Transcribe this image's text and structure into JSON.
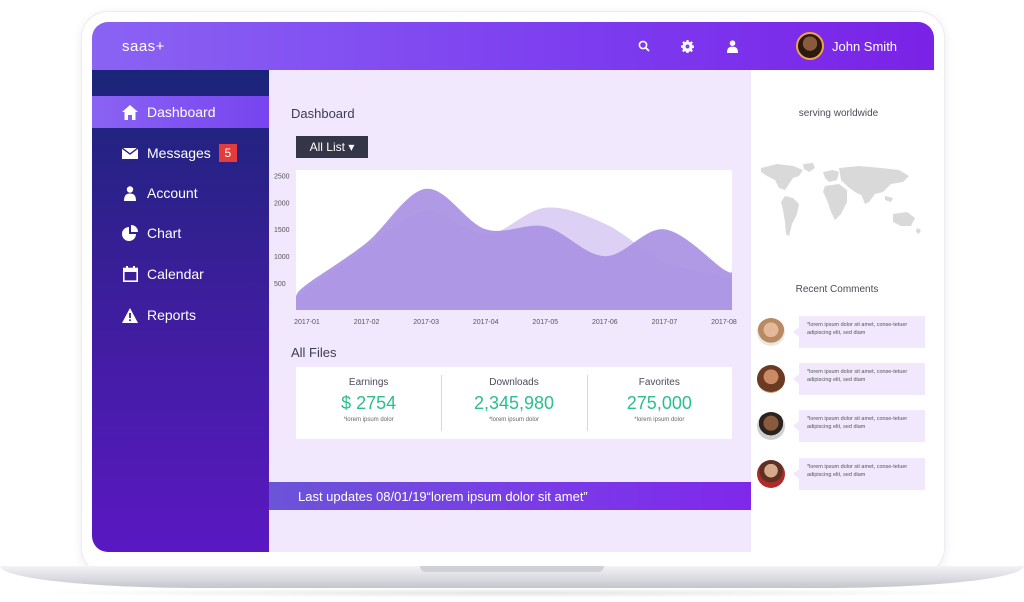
{
  "app": {
    "brand": "saas+"
  },
  "topbar": {
    "icons": [
      "search-icon",
      "gear-icon",
      "user-icon"
    ],
    "user_name": "John Smith"
  },
  "sidebar": {
    "items": [
      {
        "label": "Dashboard",
        "icon": "home-icon",
        "active": true
      },
      {
        "label": "Messages",
        "icon": "envelope-icon",
        "badge": "5"
      },
      {
        "label": "Account",
        "icon": "person-icon"
      },
      {
        "label": "Chart",
        "icon": "pie-chart-icon"
      },
      {
        "label": "Calendar",
        "icon": "calendar-icon"
      },
      {
        "label": "Reports",
        "icon": "warning-icon"
      }
    ]
  },
  "main": {
    "title": "Dashboard",
    "dropdown_label": "All List ▾",
    "files_title": "All Files",
    "stats": [
      {
        "label": "Earnings",
        "value": "$ 2754",
        "note": "*lorem ipsum dolor"
      },
      {
        "label": "Downloads",
        "value": "2,345,980",
        "note": "*lorem ipsum dolor"
      },
      {
        "label": "Favorites",
        "value": "275,000",
        "note": "*lorem ipsum dolor"
      }
    ],
    "updates": "Last updates 08/01/19“lorem ipsum dolor sit amet”"
  },
  "right": {
    "title": "serving worldwide",
    "comments_title": "Recent Comments",
    "comments": [
      {
        "text": "*lorem ipsum dolor sit amet, conse-tetuer adipiscing elit, sed diam"
      },
      {
        "text": "*lorem ipsum dolor sit amet, conse-tetuer adipiscing elit, sed diam"
      },
      {
        "text": "*lorem ipsum dolor sit amet, conse-tetuer adipiscing elit, sed diam"
      },
      {
        "text": "*lorem ipsum dolor sit amet, conse-tetuer adipiscing elit, sed diam"
      }
    ]
  },
  "colors": {
    "accent": "#7d3ff0",
    "sidebar_top": "#1a2579",
    "sidebar_bottom": "#5a18c2",
    "stat_value": "#2bbf8a",
    "badge": "#e43b3b"
  },
  "chart_data": {
    "type": "area",
    "x": [
      "2017-01",
      "2017-02",
      "2017-03",
      "2017-04",
      "2017-05",
      "2017-06",
      "2017-07",
      "2017-08"
    ],
    "yticks": [
      500,
      1000,
      1500,
      2000,
      2500
    ],
    "ylim": [
      0,
      2600
    ],
    "series": [
      {
        "values": [
          480,
          1250,
          2250,
          1500,
          1550,
          1000,
          1500,
          750
        ],
        "color": "#a991e3"
      },
      {
        "values": [
          380,
          1150,
          1850,
          1400,
          1900,
          1600,
          900,
          620
        ],
        "color": "#ddd0f5"
      }
    ]
  }
}
